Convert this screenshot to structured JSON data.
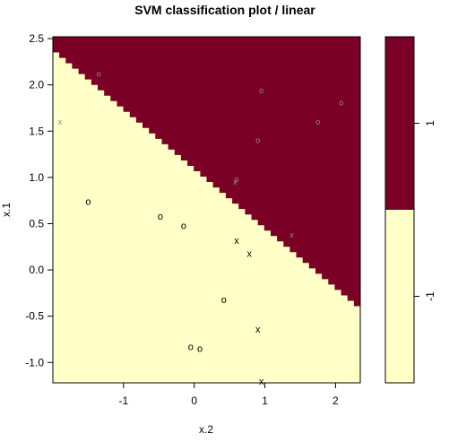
{
  "chart_data": {
    "type": "scatter",
    "title": "SVM classification plot  / linear",
    "xlabel": "x.2",
    "ylabel": "x.1",
    "xlim": [
      -2.0,
      2.35
    ],
    "ylim": [
      -1.22,
      2.52
    ],
    "x_ticks": [
      -1,
      0,
      1,
      2
    ],
    "x_tick_labels": [
      "-1",
      "0",
      "1",
      "2"
    ],
    "y_ticks": [
      -1.0,
      -0.5,
      0.0,
      0.5,
      1.0,
      1.5,
      2.0,
      2.5
    ],
    "y_tick_labels": [
      "-1.0",
      "-0.5",
      "0.0",
      "0.5",
      "1.0",
      "1.5",
      "2.0",
      "2.5"
    ],
    "regions": [
      {
        "class": "1",
        "color": "#7b0025"
      },
      {
        "class": "-1",
        "color": "#ffffc8"
      }
    ],
    "boundary": {
      "start": [
        -2.0,
        2.35
      ],
      "end": [
        2.35,
        -0.45
      ]
    },
    "points": [
      {
        "x": -1.5,
        "y": 0.74,
        "marker": "o",
        "sv": false
      },
      {
        "x": -0.48,
        "y": 0.58,
        "marker": "o",
        "sv": false
      },
      {
        "x": -0.15,
        "y": 0.48,
        "marker": "o",
        "sv": false
      },
      {
        "x": 0.6,
        "y": 0.32,
        "marker": "x",
        "sv": false
      },
      {
        "x": 0.78,
        "y": 0.18,
        "marker": "x",
        "sv": false
      },
      {
        "x": 0.42,
        "y": -0.32,
        "marker": "o",
        "sv": false
      },
      {
        "x": 0.9,
        "y": -0.64,
        "marker": "x",
        "sv": false
      },
      {
        "x": -0.05,
        "y": -0.83,
        "marker": "o",
        "sv": false
      },
      {
        "x": 0.08,
        "y": -0.85,
        "marker": "o",
        "sv": false
      },
      {
        "x": 0.95,
        "y": -1.2,
        "marker": "x",
        "sv": false
      },
      {
        "x": -1.9,
        "y": 1.6,
        "marker": "x",
        "sv": true
      },
      {
        "x": -1.35,
        "y": 2.12,
        "marker": "o",
        "sv": true
      },
      {
        "x": 0.95,
        "y": 1.94,
        "marker": "o",
        "sv": true
      },
      {
        "x": 1.75,
        "y": 1.6,
        "marker": "o",
        "sv": true
      },
      {
        "x": 2.08,
        "y": 1.81,
        "marker": "o",
        "sv": true
      },
      {
        "x": 0.9,
        "y": 1.4,
        "marker": "o",
        "sv": true
      },
      {
        "x": 0.6,
        "y": 0.98,
        "marker": "o",
        "sv": true
      },
      {
        "x": 0.58,
        "y": 0.95,
        "marker": "x",
        "sv": true
      },
      {
        "x": 1.38,
        "y": 0.38,
        "marker": "x",
        "sv": true
      }
    ],
    "legend": {
      "placement": "right",
      "entries": [
        {
          "label": "1",
          "color": "#7b0025"
        },
        {
          "label": "-1",
          "color": "#ffffc8"
        }
      ]
    }
  }
}
